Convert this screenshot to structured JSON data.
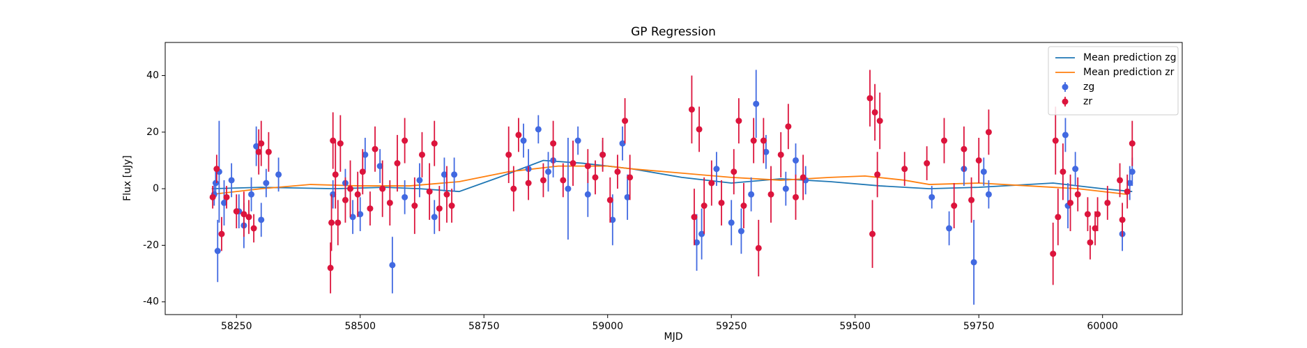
{
  "chart_data": {
    "type": "errorbar",
    "title": "GP Regression",
    "xlabel": "MJD",
    "ylabel": "Flux [uJy]",
    "xlim": [
      58106,
      60161
    ],
    "ylim": [
      -44.5,
      51.7
    ],
    "xticks": [
      58250,
      58500,
      58750,
      59000,
      59250,
      59500,
      59750,
      60000
    ],
    "yticks": [
      -40,
      -20,
      0,
      20,
      40
    ],
    "grid": false,
    "legend": "upper right",
    "series": [
      {
        "name": "Mean prediction zg",
        "kind": "line",
        "color": "#1f77b4",
        "x": [
          58200,
          58300,
          58450,
          58550,
          58620,
          58700,
          58780,
          58870,
          58950,
          59050,
          59150,
          59250,
          59350,
          59450,
          59550,
          59650,
          59750,
          59900,
          60000,
          60060
        ],
        "values": [
          0,
          0.5,
          0,
          0.5,
          0,
          -1,
          4,
          10,
          9,
          7,
          4,
          2,
          3.5,
          2.5,
          1,
          0,
          0.5,
          2,
          0,
          -1
        ]
      },
      {
        "name": "Mean prediction zr",
        "kind": "line",
        "color": "#ff7f0e",
        "x": [
          58200,
          58300,
          58400,
          58500,
          58600,
          58700,
          58800,
          58900,
          59000,
          59050,
          59150,
          59250,
          59350,
          59450,
          59520,
          59600,
          59650,
          59750,
          59850,
          59950,
          60050
        ],
        "values": [
          -2,
          0,
          1.5,
          1,
          1,
          2.5,
          6,
          8,
          8,
          7,
          5.5,
          4,
          3,
          4,
          4.5,
          3,
          1.5,
          2,
          1,
          0,
          -2
        ]
      },
      {
        "name": "zg",
        "kind": "errorbar",
        "color": "#4169e1",
        "x": [
          58205,
          58208,
          58212,
          58215,
          58225,
          58240,
          58255,
          58265,
          58280,
          58290,
          58300,
          58310,
          58335,
          58445,
          58470,
          58485,
          58500,
          58510,
          58540,
          58565,
          58590,
          58620,
          58650,
          58670,
          58690,
          58830,
          58840,
          58860,
          58880,
          58890,
          58920,
          58940,
          58960,
          58990,
          59010,
          59030,
          59040,
          59180,
          59190,
          59220,
          59250,
          59270,
          59290,
          59300,
          59320,
          59360,
          59380,
          59400,
          59655,
          59690,
          59720,
          59740,
          59760,
          59770,
          59925,
          59930,
          59945,
          60040,
          60055,
          60060
        ],
        "values": [
          -2,
          2,
          -22,
          6,
          -5,
          3,
          -8,
          -13,
          -2,
          15,
          -11,
          2,
          5,
          -2,
          2,
          -10,
          -9,
          12,
          8,
          -27,
          -3,
          3,
          -10,
          5,
          5,
          17,
          7,
          21,
          6,
          10,
          0,
          17,
          -2,
          12,
          -11,
          16,
          -3,
          -19,
          -16,
          7,
          -12,
          -15,
          -2,
          30,
          13,
          0,
          10,
          3,
          -3,
          -14,
          7,
          -26,
          6,
          -2,
          19,
          -6,
          7,
          -16,
          2,
          6
        ],
        "errors": [
          4,
          5,
          11,
          18,
          8,
          6,
          6,
          8,
          6,
          7,
          6,
          5,
          6,
          5,
          5,
          6,
          6,
          6,
          6,
          10,
          6,
          6,
          6,
          6,
          6,
          6,
          7,
          5,
          7,
          6,
          18,
          5,
          8,
          5,
          9,
          6,
          8,
          10,
          9,
          6,
          8,
          8,
          6,
          12,
          6,
          6,
          6,
          5,
          4,
          6,
          6,
          15,
          5,
          5,
          6,
          8,
          6,
          6,
          6,
          5
        ]
      },
      {
        "name": "zr",
        "kind": "errorbar",
        "color": "#dc143c",
        "x": [
          58202,
          58210,
          58220,
          58230,
          58250,
          58265,
          58275,
          58285,
          58295,
          58300,
          58315,
          58440,
          58442,
          58445,
          58450,
          58455,
          58460,
          58470,
          58480,
          58495,
          58505,
          58520,
          58530,
          58545,
          58560,
          58575,
          58590,
          58610,
          58625,
          58640,
          58650,
          58660,
          58675,
          58685,
          58800,
          58810,
          58820,
          58840,
          58870,
          58890,
          58910,
          58930,
          58960,
          58975,
          58990,
          59005,
          59020,
          59035,
          59045,
          59170,
          59175,
          59185,
          59195,
          59210,
          59230,
          59255,
          59265,
          59275,
          59295,
          59305,
          59315,
          59330,
          59350,
          59365,
          59380,
          59395,
          59530,
          59535,
          59540,
          59545,
          59550,
          59600,
          59645,
          59680,
          59700,
          59720,
          59735,
          59750,
          59770,
          59900,
          59905,
          59910,
          59920,
          59935,
          59950,
          59970,
          59975,
          59985,
          59990,
          60010,
          60035,
          60040,
          60050,
          60060
        ],
        "values": [
          -3,
          7,
          -16,
          -3,
          -8,
          -9,
          -10,
          -14,
          13,
          16,
          13,
          -28,
          -12,
          17,
          5,
          -12,
          16,
          -4,
          0,
          -2,
          6,
          -7,
          14,
          0,
          -5,
          9,
          17,
          -6,
          12,
          -1,
          16,
          -7,
          -2,
          -6,
          12,
          0,
          19,
          2,
          3,
          16,
          3,
          9,
          8,
          4,
          12,
          -4,
          6,
          24,
          4,
          28,
          -10,
          21,
          -6,
          2,
          -5,
          6,
          24,
          -6,
          17,
          -21,
          17,
          -2,
          12,
          22,
          -3,
          4,
          32,
          -16,
          27,
          5,
          24,
          7,
          9,
          17,
          -6,
          14,
          -4,
          10,
          20,
          -23,
          17,
          -10,
          6,
          -5,
          -2,
          -9,
          -19,
          -14,
          -9,
          -5,
          3,
          -11,
          -1,
          16
        ],
        "errors": [
          4,
          5,
          6,
          4,
          6,
          8,
          6,
          5,
          8,
          8,
          7,
          9,
          10,
          10,
          12,
          8,
          10,
          8,
          10,
          8,
          8,
          6,
          8,
          10,
          8,
          10,
          8,
          10,
          8,
          10,
          8,
          8,
          10,
          6,
          10,
          8,
          6,
          6,
          6,
          8,
          6,
          8,
          6,
          6,
          6,
          8,
          6,
          8,
          8,
          12,
          10,
          8,
          10,
          8,
          8,
          8,
          8,
          8,
          8,
          10,
          8,
          10,
          8,
          8,
          8,
          8,
          10,
          12,
          10,
          8,
          10,
          6,
          6,
          8,
          8,
          8,
          8,
          8,
          8,
          11,
          12,
          10,
          10,
          10,
          6,
          6,
          6,
          6,
          6,
          6,
          6,
          6,
          6,
          8
        ]
      }
    ]
  }
}
